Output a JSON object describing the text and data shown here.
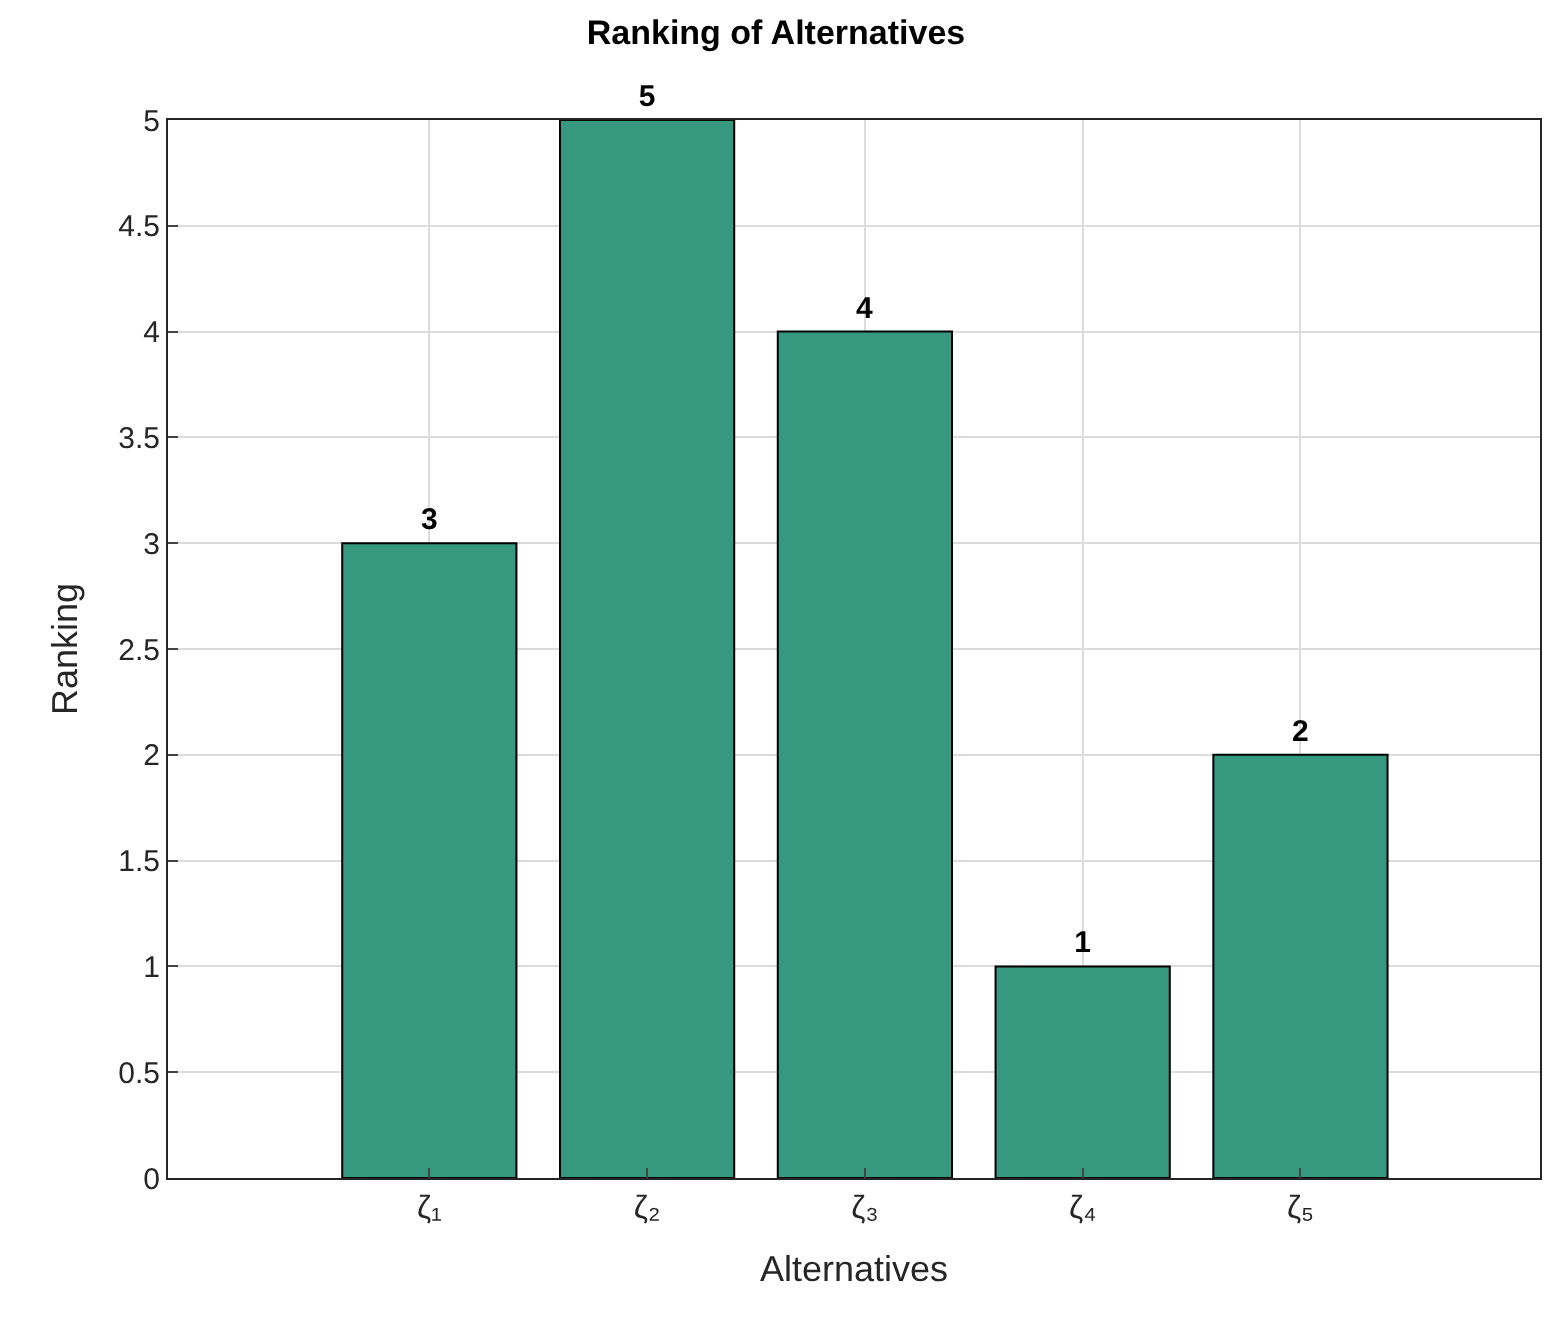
{
  "chart_data": {
    "type": "bar",
    "title": "Ranking of Alternatives",
    "xlabel": "Alternatives",
    "ylabel": "Ranking",
    "categories": [
      "ζ₁",
      "ζ₂",
      "ζ₃",
      "ζ₄",
      "ζ₅"
    ],
    "values": [
      3,
      5,
      4,
      1,
      2
    ],
    "color": "#35987f",
    "ylim": [
      0,
      5
    ],
    "yticks": [
      0,
      0.5,
      1,
      1.5,
      2,
      2.5,
      3,
      3.5,
      4,
      4.5,
      5
    ],
    "grid": true,
    "data_labels": true
  }
}
